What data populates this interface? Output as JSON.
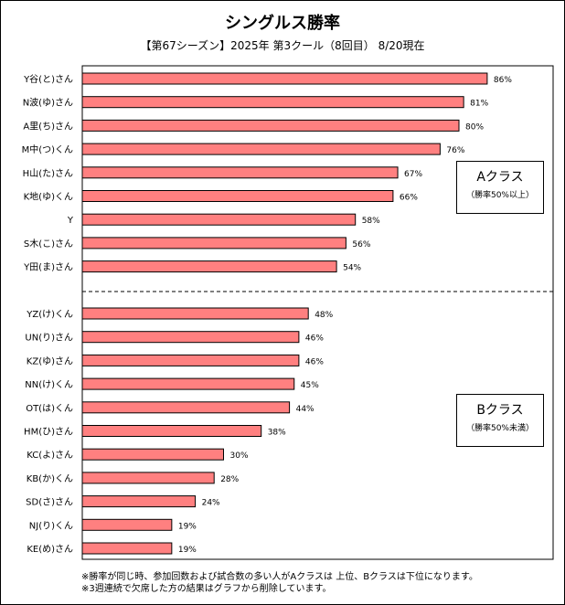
{
  "title": "シングルス勝率",
  "subtitle": "【第67シーズン】2025年 第3クール（8回目） 8/20現在",
  "chart_data": {
    "type": "bar",
    "orientation": "horizontal",
    "value_suffix": "%",
    "bar_color": "#ff8080",
    "xlim": [
      0,
      100
    ],
    "categories": [
      "Y谷(と)さん",
      "N波(ゆ)さん",
      "A里(ち)さん",
      "M中(つ)くん",
      "H山(た)さん",
      "K地(ゆ)くん",
      "Y",
      "S木(こ)さん",
      "Y田(ま)さん",
      "YZ(け)くん",
      "UN(り)さん",
      "KZ(ゆ)さん",
      "NN(け)くん",
      "OT(は)くん",
      "HM(ひ)さん",
      "KC(よ)さん",
      "KB(か)くん",
      "SD(さ)さん",
      "NJ(り)くん",
      "KE(め)さん"
    ],
    "values": [
      86,
      81,
      80,
      76,
      67,
      66,
      58,
      56,
      54,
      48,
      46,
      46,
      45,
      44,
      38,
      30,
      28,
      24,
      19,
      19
    ],
    "groups": [
      {
        "name": "Aクラス",
        "note": "（勝率50%以上）",
        "count": 9
      },
      {
        "name": "Bクラス",
        "note": "（勝率50%未満）",
        "count": 11
      }
    ]
  },
  "notes": [
    "※勝率が同じ時、参加回数および試合数の多い人がAクラスは 上位、Bクラスは下位になります。",
    "※3週連続で欠席した方の結果はグラフから削除しています。"
  ]
}
